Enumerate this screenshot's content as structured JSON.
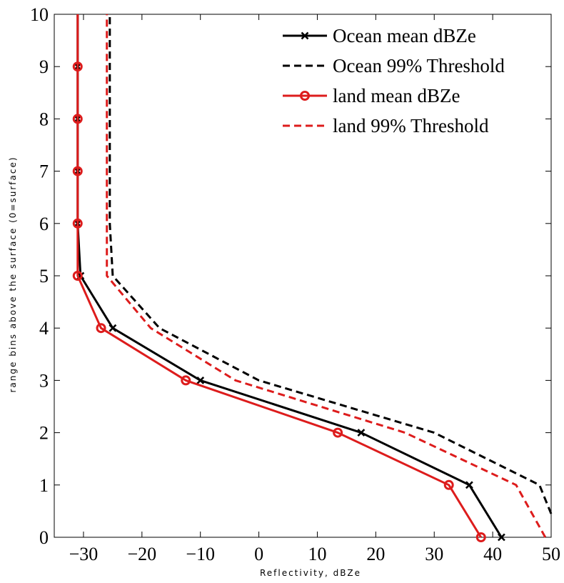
{
  "chart_data": {
    "type": "line",
    "xlabel": "Reflectivity, dBZe",
    "ylabel": "range bins above the surface (0=surface)",
    "xlim": [
      -35,
      50
    ],
    "ylim": [
      0,
      10
    ],
    "xticks": [
      -30,
      -20,
      -10,
      0,
      10,
      20,
      30,
      40,
      50
    ],
    "yticks": [
      0,
      1,
      2,
      3,
      4,
      5,
      6,
      7,
      8,
      9,
      10
    ],
    "x_tick_labels": [
      "−30",
      "−20",
      "−10",
      "0",
      "10",
      "20",
      "30",
      "40",
      "50"
    ],
    "y_tick_labels": [
      "0",
      "1",
      "2",
      "3",
      "4",
      "5",
      "6",
      "7",
      "8",
      "9",
      "10"
    ],
    "grid": false,
    "legend_position": "top-right",
    "series": [
      {
        "name": "Ocean mean dBZe",
        "color": "#000000",
        "dash": "solid",
        "marker": "x",
        "points": [
          [
            41.5,
            0
          ],
          [
            36,
            1
          ],
          [
            17.5,
            2
          ],
          [
            -10,
            3
          ],
          [
            -25,
            4
          ],
          [
            -30.5,
            5
          ],
          [
            -31,
            6
          ],
          [
            -31,
            7
          ],
          [
            -31,
            8
          ],
          [
            -31,
            9
          ],
          [
            -31,
            10
          ]
        ]
      },
      {
        "name": "Ocean 99% Threshold",
        "color": "#000000",
        "dash": "dashed",
        "marker": "none",
        "points": [
          [
            50,
            0.45
          ],
          [
            48,
            1
          ],
          [
            30,
            2
          ],
          [
            0,
            3
          ],
          [
            -17,
            4
          ],
          [
            -25,
            5
          ],
          [
            -25.5,
            6
          ],
          [
            -25.5,
            7
          ],
          [
            -25.5,
            8
          ],
          [
            -25.5,
            9
          ],
          [
            -25.5,
            10
          ]
        ]
      },
      {
        "name": "land mean dBZe",
        "color": "#dd1c1c",
        "dash": "solid",
        "marker": "o",
        "points": [
          [
            38,
            0
          ],
          [
            32.5,
            1
          ],
          [
            13.5,
            2
          ],
          [
            -12.5,
            3
          ],
          [
            -27,
            4
          ],
          [
            -31,
            5
          ],
          [
            -31,
            6
          ],
          [
            -31,
            7
          ],
          [
            -31,
            8
          ],
          [
            -31,
            9
          ],
          [
            -31,
            10
          ]
        ]
      },
      {
        "name": "land 99% Threshold",
        "color": "#dd1c1c",
        "dash": "dashed",
        "marker": "none",
        "points": [
          [
            49,
            0
          ],
          [
            44,
            1
          ],
          [
            25,
            2
          ],
          [
            -4,
            3
          ],
          [
            -18.5,
            4
          ],
          [
            -26,
            5
          ],
          [
            -26,
            6
          ],
          [
            -26,
            7
          ],
          [
            -26,
            8
          ],
          [
            -26,
            9
          ],
          [
            -26,
            10
          ]
        ]
      }
    ]
  }
}
